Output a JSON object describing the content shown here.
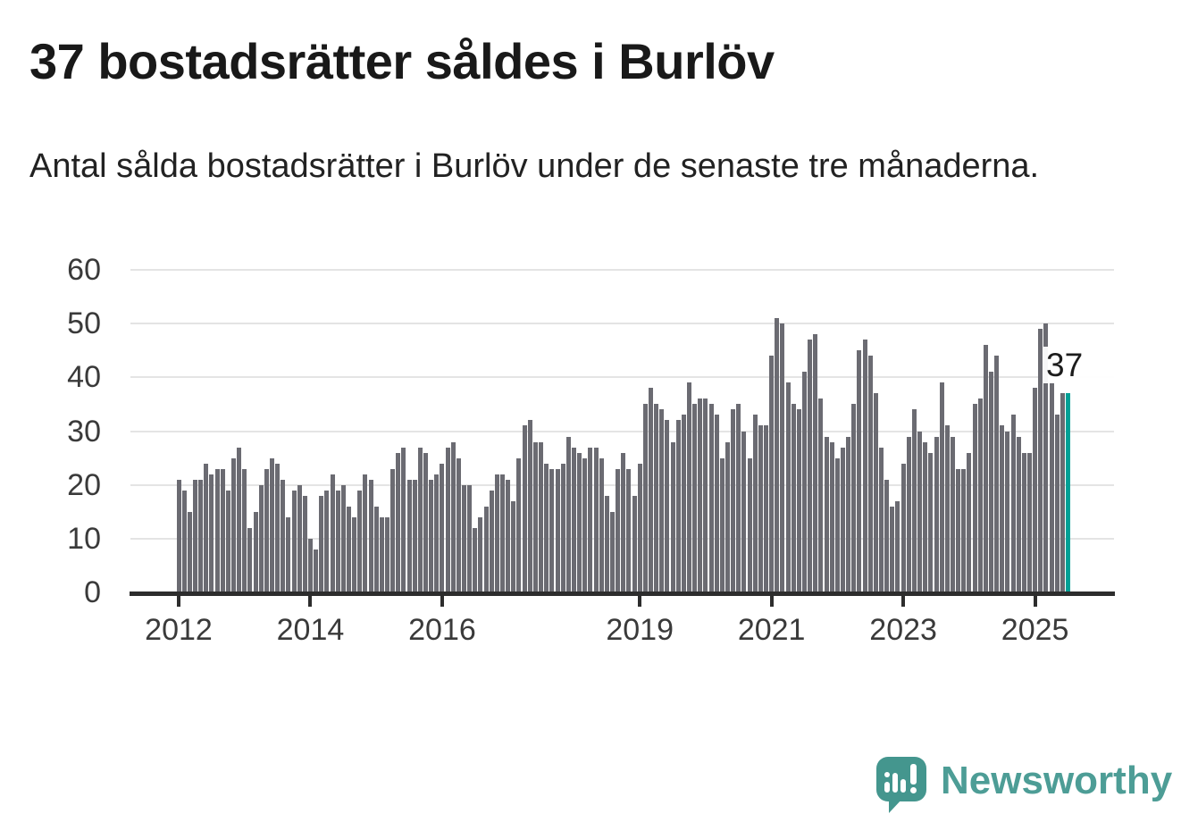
{
  "title": "37 bostadsrätter såldes i Burlöv",
  "subtitle": "Antal sålda bostadsrätter i Burlöv under de senaste tre månaderna.",
  "annotation": {
    "label": "37"
  },
  "logo": {
    "text": "Newsworthy"
  },
  "colors": {
    "bar": "#6b6b72",
    "highlight": "#00a096",
    "grid": "#e4e4e4",
    "axis": "#2d2d2d",
    "text": "#3a3a3a",
    "logo_teal": "#4d9d96",
    "logo_bubble": "#44968e"
  },
  "chart_data": {
    "type": "bar",
    "title": "37 bostadsrätter såldes i Burlöv",
    "subtitle": "Antal sålda bostadsrätter i Burlöv under de senaste tre månaderna.",
    "x_start": "2012-01",
    "frequency": "monthly",
    "ylim": [
      0,
      60
    ],
    "grid": true,
    "yticks": [
      0,
      10,
      20,
      30,
      40,
      50,
      60
    ],
    "ytick_labels": [
      "0",
      "10",
      "20",
      "30",
      "40",
      "50",
      "60"
    ],
    "xticks": [
      {
        "label": "2012",
        "month_index": 0
      },
      {
        "label": "2014",
        "month_index": 24
      },
      {
        "label": "2016",
        "month_index": 48
      },
      {
        "label": "2019",
        "month_index": 84
      },
      {
        "label": "2021",
        "month_index": 108
      },
      {
        "label": "2023",
        "month_index": 132
      },
      {
        "label": "2025",
        "month_index": 156
      }
    ],
    "highlight_index": 162,
    "highlight_value": 37,
    "values": [
      21,
      19,
      15,
      21,
      21,
      24,
      22,
      23,
      23,
      19,
      25,
      27,
      23,
      12,
      15,
      20,
      23,
      25,
      24,
      21,
      14,
      19,
      20,
      18,
      10,
      8,
      18,
      19,
      22,
      19,
      20,
      16,
      14,
      19,
      22,
      21,
      16,
      14,
      14,
      23,
      26,
      27,
      21,
      21,
      27,
      26,
      21,
      22,
      24,
      27,
      28,
      25,
      20,
      20,
      12,
      14,
      16,
      19,
      22,
      22,
      21,
      17,
      25,
      31,
      32,
      28,
      28,
      24,
      23,
      23,
      24,
      29,
      27,
      26,
      25,
      27,
      27,
      25,
      18,
      15,
      23,
      26,
      23,
      18,
      24,
      35,
      38,
      35,
      34,
      32,
      28,
      32,
      33,
      39,
      35,
      36,
      36,
      35,
      33,
      25,
      28,
      34,
      35,
      30,
      25,
      33,
      31,
      31,
      44,
      51,
      50,
      39,
      35,
      34,
      41,
      47,
      48,
      36,
      29,
      28,
      25,
      27,
      29,
      35,
      45,
      47,
      44,
      37,
      27,
      21,
      16,
      17,
      24,
      29,
      34,
      30,
      28,
      26,
      29,
      39,
      31,
      29,
      23,
      23,
      26,
      35,
      36,
      46,
      41,
      44,
      31,
      30,
      33,
      29,
      26,
      26,
      38,
      49,
      50,
      39,
      33,
      37,
      37
    ]
  }
}
